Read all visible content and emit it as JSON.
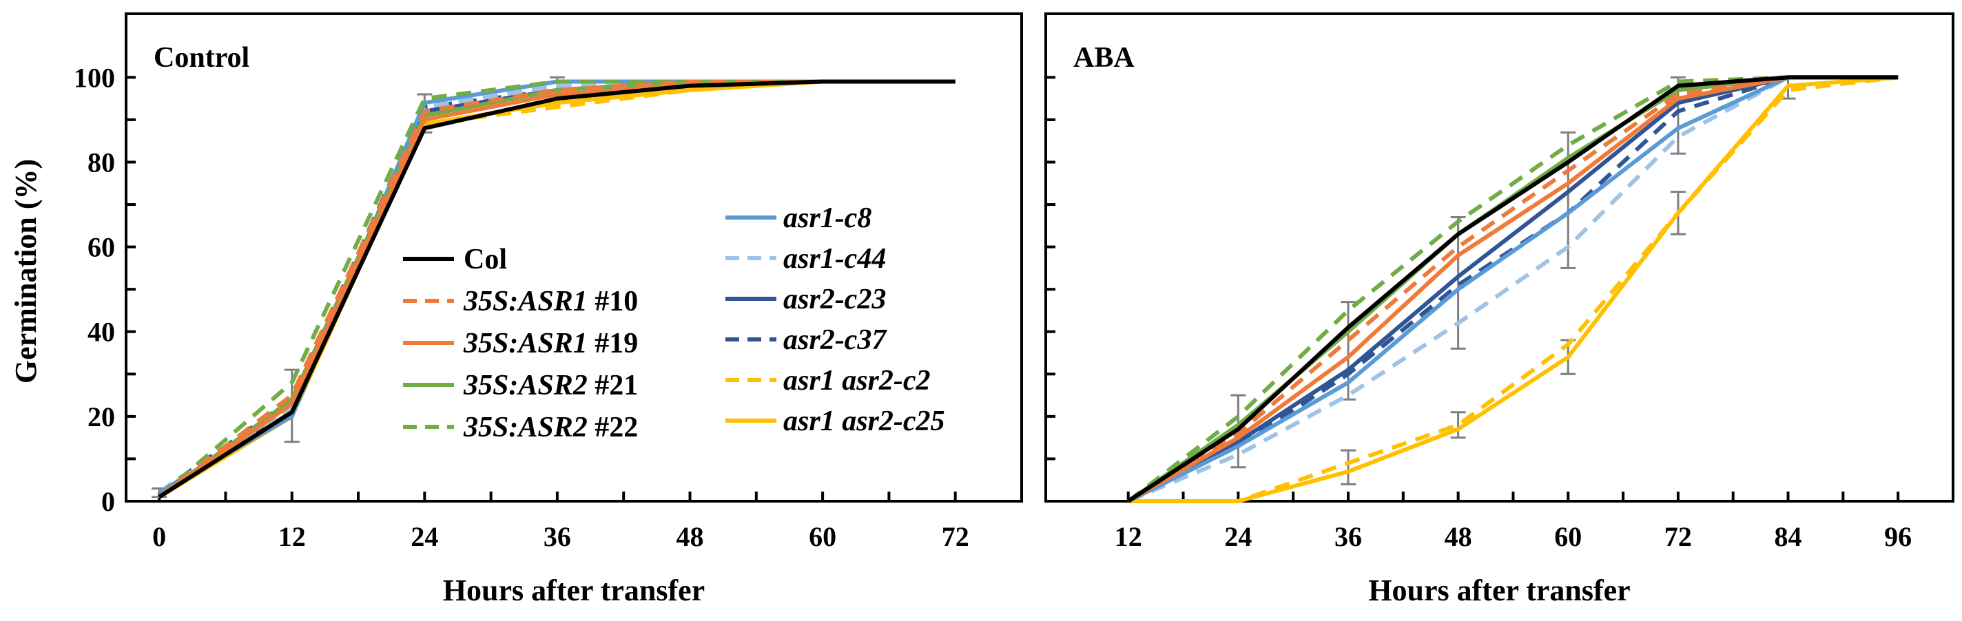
{
  "chart_data": [
    {
      "type": "line",
      "title": "Control",
      "xlabel": "Hours after transfer",
      "ylabel": "Germination (%)",
      "x": [
        0,
        12,
        24,
        36,
        48,
        60,
        72
      ],
      "xticks": [
        "0",
        "12",
        "24",
        "36",
        "48",
        "60",
        "72"
      ],
      "xlim": [
        -3,
        78
      ],
      "ylim": [
        0,
        115
      ],
      "yticks": [
        "0",
        "20",
        "40",
        "60",
        "80",
        "100"
      ],
      "grid": false,
      "legend_position": "center",
      "legend_columns": [
        [
          "Col",
          "35S:ASR1 #10",
          "35S:ASR1 #19",
          "35S:ASR2 #21",
          "35S:ASR2 #22"
        ],
        [
          "asr1-c8",
          "asr1-c44",
          "asr2-c23",
          "asr2-c37",
          "asr1 asr2-c2",
          "asr1 asr2-c25"
        ]
      ],
      "series": [
        {
          "name": "Col",
          "legend_parts": [
            {
              "t": "Col",
              "i": false
            }
          ],
          "color": "#000000",
          "dash": "solid",
          "values": [
            1,
            21,
            88,
            95,
            98,
            99,
            99
          ]
        },
        {
          "name": "35S:ASR1 #10",
          "legend_parts": [
            {
              "t": "35S:ASR1",
              "i": true
            },
            {
              "t": " #10",
              "i": false
            }
          ],
          "color": "#f07a3a",
          "dash": "dashed",
          "values": [
            1,
            25,
            92,
            97,
            99,
            99,
            99
          ]
        },
        {
          "name": "35S:ASR1 #19",
          "legend_parts": [
            {
              "t": "35S:ASR1",
              "i": true
            },
            {
              "t": " #19",
              "i": false
            }
          ],
          "color": "#f07a3a",
          "dash": "solid",
          "values": [
            1,
            23,
            90,
            96,
            98,
            99,
            99
          ]
        },
        {
          "name": "35S:ASR2 #21",
          "legend_parts": [
            {
              "t": "35S:ASR2",
              "i": true
            },
            {
              "t": " #21",
              "i": false
            }
          ],
          "color": "#70ad47",
          "dash": "solid",
          "values": [
            1,
            24,
            91,
            97,
            99,
            99,
            99
          ]
        },
        {
          "name": "35S:ASR2 #22",
          "legend_parts": [
            {
              "t": "35S:ASR2",
              "i": true
            },
            {
              "t": " #22",
              "i": false
            }
          ],
          "color": "#70ad47",
          "dash": "dashed",
          "values": [
            1,
            28,
            95,
            99,
            99,
            99,
            99
          ]
        },
        {
          "name": "asr1-c8",
          "legend_parts": [
            {
              "t": "asr1-c8",
              "i": true
            }
          ],
          "color": "#5b9bd5",
          "dash": "solid",
          "values": [
            2,
            20,
            94,
            99,
            99,
            99,
            99
          ]
        },
        {
          "name": "asr1-c44",
          "legend_parts": [
            {
              "t": "asr1-c44",
              "i": true
            }
          ],
          "color": "#9dc3e6",
          "dash": "dashed",
          "values": [
            2,
            22,
            93,
            98,
            99,
            99,
            99
          ]
        },
        {
          "name": "asr2-c23",
          "legend_parts": [
            {
              "t": "asr2-c23",
              "i": true
            }
          ],
          "color": "#2f5597",
          "dash": "solid",
          "values": [
            2,
            21,
            92,
            97,
            99,
            99,
            99
          ]
        },
        {
          "name": "asr2-c37",
          "legend_parts": [
            {
              "t": "asr2-c37",
              "i": true
            }
          ],
          "color": "#2f5597",
          "dash": "dashed",
          "values": [
            2,
            24,
            93,
            97,
            99,
            99,
            99
          ]
        },
        {
          "name": "asr1 asr2-c2",
          "legend_parts": [
            {
              "t": "asr1 asr2-c2",
              "i": true
            }
          ],
          "color": "#ffc000",
          "dash": "dashed",
          "values": [
            1,
            22,
            89,
            93,
            97,
            99,
            99
          ]
        },
        {
          "name": "asr1 asr2-c25",
          "legend_parts": [
            {
              "t": "asr1 asr2-c25",
              "i": true
            }
          ],
          "color": "#ffc000",
          "dash": "solid",
          "values": [
            1,
            20,
            89,
            94,
            97,
            99,
            99
          ]
        }
      ],
      "error_bars": [
        {
          "x": 0,
          "low": 1,
          "high": 3
        },
        {
          "x": 12,
          "low": 14,
          "high": 31
        },
        {
          "x": 24,
          "low": 87,
          "high": 96
        },
        {
          "x": 36,
          "low": 95,
          "high": 100
        }
      ]
    },
    {
      "type": "line",
      "title": "ABA",
      "xlabel": "Hours after transfer",
      "ylabel": "",
      "x": [
        12,
        24,
        36,
        48,
        60,
        72,
        84,
        96
      ],
      "xticks": [
        "12",
        "24",
        "36",
        "48",
        "60",
        "72",
        "84",
        "96"
      ],
      "xlim": [
        3,
        102
      ],
      "ylim": [
        0,
        115
      ],
      "grid": false,
      "series": [
        {
          "name": "Col",
          "color": "#000000",
          "dash": "solid",
          "values": [
            0,
            17,
            41,
            63,
            80,
            98,
            100,
            100
          ]
        },
        {
          "name": "35S:ASR1 #10",
          "color": "#f07a3a",
          "dash": "dashed",
          "values": [
            0,
            16,
            38,
            60,
            78,
            96,
            100,
            100
          ]
        },
        {
          "name": "35S:ASR1 #19",
          "color": "#f07a3a",
          "dash": "solid",
          "values": [
            0,
            15,
            34,
            58,
            75,
            95,
            100,
            100
          ]
        },
        {
          "name": "35S:ASR2 #21",
          "color": "#70ad47",
          "dash": "solid",
          "values": [
            0,
            18,
            40,
            63,
            81,
            97,
            100,
            100
          ]
        },
        {
          "name": "35S:ASR2 #22",
          "color": "#70ad47",
          "dash": "dashed",
          "values": [
            0,
            20,
            45,
            66,
            84,
            99,
            100,
            100
          ]
        },
        {
          "name": "asr1-c8",
          "color": "#5b9bd5",
          "dash": "solid",
          "values": [
            0,
            13,
            28,
            50,
            68,
            88,
            100,
            100
          ]
        },
        {
          "name": "asr1-c44",
          "color": "#9dc3e6",
          "dash": "dashed",
          "values": [
            0,
            11,
            25,
            42,
            60,
            86,
            100,
            100
          ]
        },
        {
          "name": "asr2-c23",
          "color": "#2f5597",
          "dash": "solid",
          "values": [
            0,
            14,
            31,
            53,
            73,
            94,
            100,
            100
          ]
        },
        {
          "name": "asr2-c37",
          "color": "#2f5597",
          "dash": "dashed",
          "values": [
            0,
            13,
            30,
            51,
            68,
            92,
            100,
            100
          ]
        },
        {
          "name": "asr1 asr2-c2",
          "color": "#ffc000",
          "dash": "dashed",
          "values": [
            0,
            0,
            9,
            18,
            37,
            68,
            97,
            100
          ]
        },
        {
          "name": "asr1 asr2-c25",
          "color": "#ffc000",
          "dash": "solid",
          "values": [
            0,
            0,
            7,
            17,
            34,
            68,
            98,
            100
          ]
        }
      ],
      "error_bars": [
        {
          "x": 24,
          "low": 8,
          "high": 25
        },
        {
          "x": 36,
          "low": 4,
          "high": 12
        },
        {
          "x": 36,
          "low": 24,
          "high": 47
        },
        {
          "x": 48,
          "low": 15,
          "high": 21
        },
        {
          "x": 48,
          "low": 36,
          "high": 67
        },
        {
          "x": 60,
          "low": 30,
          "high": 38
        },
        {
          "x": 60,
          "low": 55,
          "high": 87
        },
        {
          "x": 72,
          "low": 63,
          "high": 73
        },
        {
          "x": 72,
          "low": 82,
          "high": 100
        },
        {
          "x": 84,
          "low": 95,
          "high": 100
        }
      ]
    }
  ]
}
